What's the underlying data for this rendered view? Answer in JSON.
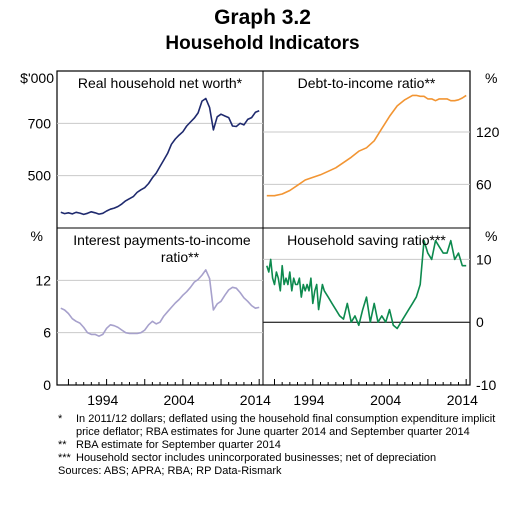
{
  "header": {
    "title": "Graph 3.2",
    "subtitle": "Household Indicators"
  },
  "footnotes": [
    {
      "mark": "*",
      "text": "In 2011/12 dollars; deflated using the household final consumption expenditure implicit price deflator; RBA estimates for June quarter 2014 and September quarter 2014"
    },
    {
      "mark": "**",
      "text": "RBA estimate for September quarter 2014"
    },
    {
      "mark": "***",
      "text": "Household sector includes unincorporated businesses; net of depreciation"
    }
  ],
  "source": "Sources: ABS; APRA; RBA; RP Data-Rismark",
  "axes": {
    "top_left_unit": "$'000",
    "top_right_unit": "%",
    "bottom_left_unit": "%",
    "bottom_right_unit": "%",
    "x_ticks": [
      {
        "label": "1994",
        "value": 1994
      },
      {
        "label": "2004",
        "value": 2004
      },
      {
        "label": "2014",
        "value": 2014
      }
    ]
  },
  "chart_data": [
    {
      "type": "line",
      "title": "Real household net worth*",
      "unit": "$'000",
      "color": "#1f2a6e",
      "xlim": [
        1988,
        2015
      ],
      "ylim": [
        300,
        900
      ],
      "yticks": [
        500,
        700
      ],
      "x": [
        1988.5,
        1989,
        1989.5,
        1990,
        1990.5,
        1991,
        1991.5,
        1992,
        1992.5,
        1993,
        1993.5,
        1994,
        1994.5,
        1995,
        1995.5,
        1996,
        1996.5,
        1997,
        1997.5,
        1998,
        1998.5,
        1999,
        1999.5,
        2000,
        2000.5,
        2001,
        2001.5,
        2002,
        2002.5,
        2003,
        2003.5,
        2004,
        2004.5,
        2005,
        2005.5,
        2006,
        2006.5,
        2007,
        2007.5,
        2008,
        2008.5,
        2009,
        2009.5,
        2010,
        2010.5,
        2011,
        2011.5,
        2012,
        2012.5,
        2013,
        2013.5,
        2014,
        2014.5
      ],
      "y": [
        360,
        355,
        358,
        354,
        360,
        357,
        352,
        356,
        362,
        358,
        353,
        356,
        365,
        372,
        376,
        382,
        392,
        404,
        412,
        420,
        436,
        446,
        454,
        470,
        492,
        510,
        535,
        560,
        585,
        620,
        640,
        655,
        668,
        690,
        705,
        720,
        740,
        785,
        795,
        760,
        675,
        725,
        735,
        728,
        722,
        690,
        688,
        700,
        694,
        715,
        722,
        742,
        748
      ]
    },
    {
      "type": "line",
      "title": "Debt-to-income ratio**",
      "unit": "%",
      "color": "#f29533",
      "xlim": [
        1988,
        2015
      ],
      "ylim": [
        10,
        190
      ],
      "yticks": [
        60,
        120
      ],
      "x": [
        1988.5,
        1989.5,
        1990.5,
        1991.5,
        1992.5,
        1993.5,
        1994.5,
        1995.5,
        1996.5,
        1997.5,
        1998.5,
        1999.5,
        2000.5,
        2001.5,
        2002.5,
        2003.5,
        2004.5,
        2005.5,
        2006.5,
        2007.5,
        2008,
        2008.5,
        2009,
        2009.5,
        2010,
        2010.5,
        2011,
        2011.5,
        2012,
        2012.5,
        2013,
        2013.5,
        2014,
        2014.5
      ],
      "y": [
        47,
        47,
        49,
        53,
        59,
        65,
        68,
        71,
        75,
        79,
        85,
        91,
        98,
        102,
        110,
        124,
        138,
        150,
        157,
        162,
        162,
        161,
        161,
        158,
        158,
        156,
        158,
        158,
        158,
        156,
        156,
        157,
        159,
        162
      ]
    },
    {
      "type": "line",
      "title": "Interest payments-to-income ratio**",
      "unit": "%",
      "color": "#a7a1cc",
      "xlim": [
        1988,
        2015
      ],
      "ylim": [
        0,
        18
      ],
      "yticks": [
        0,
        6,
        12
      ],
      "x": [
        1988.5,
        1989,
        1989.5,
        1990,
        1990.5,
        1991,
        1991.5,
        1992,
        1992.5,
        1993,
        1993.5,
        1994,
        1994.5,
        1995,
        1995.5,
        1996,
        1996.5,
        1997,
        1997.5,
        1998,
        1998.5,
        1999,
        1999.5,
        2000,
        2000.5,
        2001,
        2001.5,
        2002,
        2002.5,
        2003,
        2003.5,
        2004,
        2004.5,
        2005,
        2005.5,
        2006,
        2006.5,
        2007,
        2007.5,
        2008,
        2008.5,
        2009,
        2009.5,
        2010,
        2010.5,
        2011,
        2011.5,
        2012,
        2012.5,
        2013,
        2013.5,
        2014,
        2014.5
      ],
      "y": [
        8.8,
        8.6,
        8.2,
        7.6,
        7.3,
        7.1,
        6.6,
        6.0,
        5.8,
        5.8,
        5.6,
        5.8,
        6.5,
        6.9,
        6.8,
        6.6,
        6.3,
        6.0,
        5.9,
        5.9,
        5.9,
        6.0,
        6.3,
        6.9,
        7.3,
        7.0,
        7.2,
        7.9,
        8.4,
        8.9,
        9.4,
        9.8,
        10.3,
        10.7,
        11.2,
        11.8,
        12.1,
        12.6,
        13.2,
        12.2,
        8.6,
        9.3,
        9.6,
        10.3,
        10.9,
        11.2,
        11.1,
        10.6,
        10.0,
        9.6,
        9.1,
        8.8,
        8.9
      ]
    },
    {
      "type": "line",
      "title": "Household saving ratio***",
      "unit": "%",
      "color": "#0d8a4e",
      "xlim": [
        1988,
        2015
      ],
      "ylim": [
        -10,
        15
      ],
      "yticks": [
        -10,
        0,
        10
      ],
      "x": [
        1988.5,
        1988.75,
        1989,
        1989.25,
        1989.5,
        1989.75,
        1990,
        1990.25,
        1990.5,
        1990.75,
        1991,
        1991.25,
        1991.5,
        1991.75,
        1992,
        1992.25,
        1992.5,
        1992.75,
        1993,
        1993.25,
        1993.5,
        1993.75,
        1994,
        1994.25,
        1994.5,
        1994.75,
        1995,
        1995.25,
        1995.5,
        1995.75,
        1996,
        1996.5,
        1997,
        1997.5,
        1998,
        1998.5,
        1999,
        1999.5,
        2000,
        2000.5,
        2001,
        2001.5,
        2002,
        2002.5,
        2003,
        2003.5,
        2004,
        2004.5,
        2005,
        2005.5,
        2006,
        2006.5,
        2007,
        2007.5,
        2008,
        2008.5,
        2009,
        2009.5,
        2010,
        2010.5,
        2011,
        2011.5,
        2012,
        2012.5,
        2013,
        2013.5,
        2014,
        2014.5
      ],
      "y": [
        9,
        8,
        10,
        7,
        6,
        8,
        7,
        5,
        9,
        6,
        7,
        6,
        8,
        5,
        7,
        6,
        6,
        7,
        4,
        6,
        5,
        6,
        5,
        7,
        3,
        5,
        6,
        2,
        4,
        6,
        5,
        4,
        3,
        2,
        1,
        0.5,
        3,
        0,
        1,
        -0.5,
        2,
        4,
        0,
        3,
        0,
        1,
        0,
        2,
        -0.5,
        -1,
        0,
        1,
        2,
        3,
        4,
        6,
        13,
        11,
        10,
        13,
        12,
        11,
        11,
        13,
        10,
        11,
        9,
        9
      ]
    }
  ]
}
